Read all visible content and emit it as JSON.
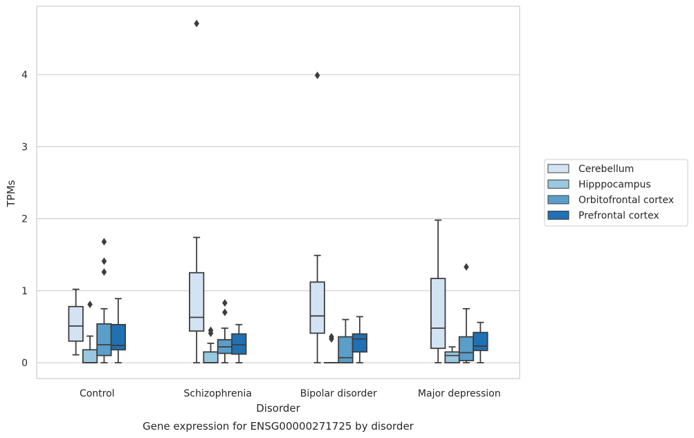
{
  "chart_data": {
    "type": "box",
    "title": "",
    "caption": "Gene expression for ENSG00000271725 by disorder",
    "xlabel": "Disorder",
    "ylabel": "TPMs",
    "ylim": [
      -0.22,
      4.95
    ],
    "yticks": [
      0,
      1,
      2,
      3,
      4
    ],
    "grid": "horizontal",
    "legend_position": "right",
    "categories": [
      "Control",
      "Schizophrenia",
      "Bipolar disorder",
      "Major depression"
    ],
    "series": [
      {
        "name": "Cerebellum",
        "color": "#d3e3f3",
        "boxes": [
          {
            "whisker_low": 0.11,
            "q1": 0.3,
            "median": 0.51,
            "q3": 0.78,
            "whisker_high": 1.02,
            "outliers": []
          },
          {
            "whisker_low": 0.0,
            "q1": 0.44,
            "median": 0.63,
            "q3": 1.25,
            "whisker_high": 1.74,
            "outliers": [
              4.71
            ]
          },
          {
            "whisker_low": 0.0,
            "q1": 0.41,
            "median": 0.65,
            "q3": 1.12,
            "whisker_high": 1.49,
            "outliers": [
              3.99
            ]
          },
          {
            "whisker_low": 0.0,
            "q1": 0.2,
            "median": 0.48,
            "q3": 1.17,
            "whisker_high": 1.98,
            "outliers": []
          }
        ]
      },
      {
        "name": "Hipppocampus",
        "color": "#9ac8e0",
        "boxes": [
          {
            "whisker_low": 0.0,
            "q1": 0.0,
            "median": 0.0,
            "q3": 0.18,
            "whisker_high": 0.37,
            "outliers": [
              0.81
            ]
          },
          {
            "whisker_low": 0.0,
            "q1": 0.0,
            "median": 0.0,
            "q3": 0.15,
            "whisker_high": 0.27,
            "outliers": [
              0.41,
              0.45
            ]
          },
          {
            "whisker_low": 0.0,
            "q1": 0.0,
            "median": 0.0,
            "q3": 0.0,
            "whisker_high": 0.0,
            "outliers": [
              0.33,
              0.36
            ]
          },
          {
            "whisker_low": 0.0,
            "q1": 0.0,
            "median": 0.1,
            "q3": 0.15,
            "whisker_high": 0.22,
            "outliers": []
          }
        ]
      },
      {
        "name": "Orbitofrontal cortex",
        "color": "#5a9ec9",
        "boxes": [
          {
            "whisker_low": 0.0,
            "q1": 0.1,
            "median": 0.25,
            "q3": 0.54,
            "whisker_high": 0.75,
            "outliers": [
              1.26,
              1.41,
              1.68
            ]
          },
          {
            "whisker_low": 0.0,
            "q1": 0.13,
            "median": 0.22,
            "q3": 0.32,
            "whisker_high": 0.48,
            "outliers": [
              0.7,
              0.83
            ]
          },
          {
            "whisker_low": 0.0,
            "q1": 0.0,
            "median": 0.07,
            "q3": 0.36,
            "whisker_high": 0.6,
            "outliers": []
          },
          {
            "whisker_low": 0.0,
            "q1": 0.03,
            "median": 0.14,
            "q3": 0.36,
            "whisker_high": 0.75,
            "outliers": [
              1.33
            ]
          }
        ]
      },
      {
        "name": "Prefrontal cortex",
        "color": "#2070b4",
        "boxes": [
          {
            "whisker_low": 0.0,
            "q1": 0.18,
            "median": 0.24,
            "q3": 0.53,
            "whisker_high": 0.89,
            "outliers": []
          },
          {
            "whisker_low": 0.0,
            "q1": 0.12,
            "median": 0.25,
            "q3": 0.4,
            "whisker_high": 0.53,
            "outliers": []
          },
          {
            "whisker_low": 0.0,
            "q1": 0.15,
            "median": 0.33,
            "q3": 0.4,
            "whisker_high": 0.64,
            "outliers": []
          },
          {
            "whisker_low": 0.0,
            "q1": 0.17,
            "median": 0.23,
            "q3": 0.42,
            "whisker_high": 0.56,
            "outliers": []
          }
        ]
      }
    ]
  }
}
